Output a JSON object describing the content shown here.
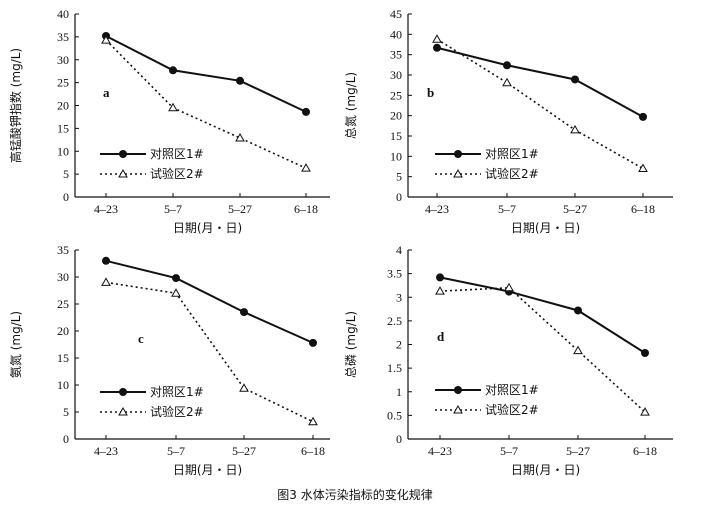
{
  "caption": "图3    水体污染指标的变化规律",
  "chart_data": [
    {
      "type": "line",
      "panel": "a",
      "categories": [
        "4–23",
        "5–7",
        "5–27",
        "6–18"
      ],
      "ylabel": "高锰酸钾指数 (mg/L)",
      "xlabel": "日期(月・日)",
      "ylim": [
        0,
        40
      ],
      "yticks": [
        0,
        5,
        10,
        15,
        20,
        25,
        30,
        35,
        40
      ],
      "legend_position": "lower-left",
      "series": [
        {
          "name": "对照区1#",
          "marker": "circle-filled",
          "line": "solid",
          "values": [
            35.2,
            27.7,
            25.4,
            18.6
          ]
        },
        {
          "name": "试验区2#",
          "marker": "triangle-open",
          "line": "dotted",
          "values": [
            34.3,
            19.5,
            12.9,
            6.3
          ]
        }
      ]
    },
    {
      "type": "line",
      "panel": "b",
      "categories": [
        "4–23",
        "5–7",
        "5–27",
        "6–18"
      ],
      "ylabel": "总氮 (mg/L)",
      "xlabel": "日期(月・日)",
      "ylim": [
        0,
        45
      ],
      "yticks": [
        0,
        5,
        10,
        15,
        20,
        25,
        30,
        35,
        40,
        45
      ],
      "legend_position": "lower-left",
      "series": [
        {
          "name": "对照区1#",
          "marker": "circle-filled",
          "line": "solid",
          "values": [
            36.7,
            32.4,
            28.9,
            19.7
          ]
        },
        {
          "name": "试验区2#",
          "marker": "triangle-open",
          "line": "dotted",
          "values": [
            38.8,
            28.1,
            16.5,
            7.0
          ]
        }
      ]
    },
    {
      "type": "line",
      "panel": "c",
      "categories": [
        "4–23",
        "5–7",
        "5–27",
        "6–18"
      ],
      "ylabel": "氨氮 (mg/L)",
      "xlabel": "日期(月・日)",
      "ylim": [
        0,
        35
      ],
      "yticks": [
        0,
        5,
        10,
        15,
        20,
        25,
        30,
        35
      ],
      "legend_position": "lower-left",
      "series": [
        {
          "name": "对照区1#",
          "marker": "circle-filled",
          "line": "solid",
          "values": [
            33.0,
            29.8,
            23.5,
            17.8
          ]
        },
        {
          "name": "试验区2#",
          "marker": "triangle-open",
          "line": "dotted",
          "values": [
            29.0,
            27.0,
            9.4,
            3.2
          ]
        }
      ]
    },
    {
      "type": "line",
      "panel": "d",
      "categories": [
        "4–23",
        "5–7",
        "5–27",
        "6–18"
      ],
      "ylabel": "总磷 (mg/L)",
      "xlabel": "日期(月・日)",
      "ylim": [
        0,
        4
      ],
      "yticks": [
        0,
        0.5,
        1,
        1.5,
        2,
        2.5,
        3,
        3.5,
        4
      ],
      "legend_position": "lower-left",
      "series": [
        {
          "name": "对照区1#",
          "marker": "circle-filled",
          "line": "solid",
          "values": [
            3.42,
            3.12,
            2.72,
            1.82
          ]
        },
        {
          "name": "试验区2#",
          "marker": "triangle-open",
          "line": "dotted",
          "values": [
            3.13,
            3.2,
            1.87,
            0.57
          ]
        }
      ]
    }
  ]
}
